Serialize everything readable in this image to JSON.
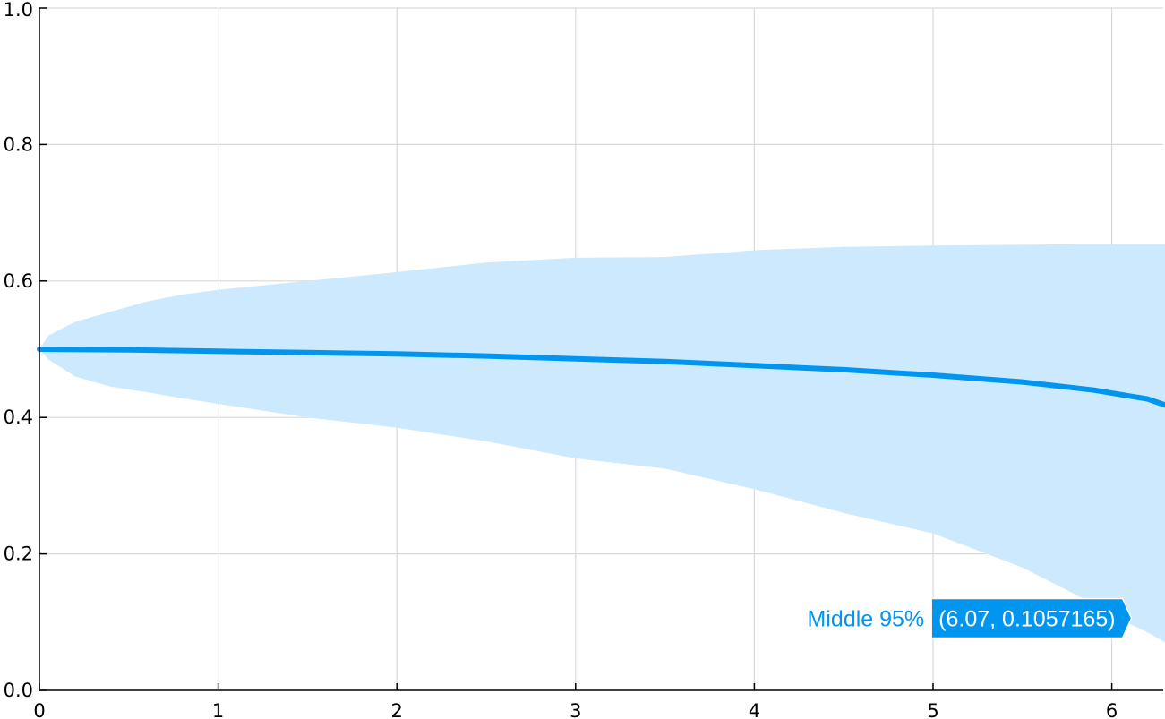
{
  "chart_data": {
    "type": "area",
    "title": "",
    "xlabel": "",
    "ylabel": "",
    "xlim": [
      0,
      6.3
    ],
    "ylim": [
      0,
      1
    ],
    "x_ticks": [
      "0",
      "1",
      "2",
      "3",
      "4",
      "5",
      "6"
    ],
    "y_ticks": [
      "0.0",
      "0.2",
      "0.4",
      "0.6",
      "0.8",
      "1.0"
    ],
    "grid": true,
    "colors": {
      "line": "#0096f0",
      "band": "#cce9fd",
      "tooltip_bg": "#0096f0"
    },
    "series": [
      {
        "name": "Middle 95%",
        "type": "band",
        "x": [
          0,
          0.05,
          0.2,
          0.4,
          0.6,
          0.8,
          1.0,
          1.5,
          2.0,
          2.5,
          3.0,
          3.5,
          4.0,
          4.5,
          5.0,
          5.5,
          5.8,
          6.0,
          6.2,
          6.3
        ],
        "upper": [
          0.5,
          0.52,
          0.54,
          0.555,
          0.57,
          0.58,
          0.587,
          0.6,
          0.613,
          0.627,
          0.634,
          0.635,
          0.645,
          0.65,
          0.652,
          0.653,
          0.654,
          0.654,
          0.654,
          0.654
        ],
        "lower": [
          0.5,
          0.485,
          0.46,
          0.445,
          0.437,
          0.428,
          0.42,
          0.4,
          0.385,
          0.365,
          0.34,
          0.325,
          0.295,
          0.26,
          0.23,
          0.18,
          0.14,
          0.11,
          0.085,
          0.07
        ]
      },
      {
        "name": "",
        "type": "line",
        "x": [
          0,
          0.5,
          1.0,
          1.5,
          2.0,
          2.5,
          3.0,
          3.5,
          4.0,
          4.5,
          5.0,
          5.5,
          5.9,
          6.2,
          6.3
        ],
        "y": [
          0.5,
          0.499,
          0.497,
          0.495,
          0.493,
          0.49,
          0.486,
          0.482,
          0.476,
          0.47,
          0.462,
          0.452,
          0.44,
          0.427,
          0.418
        ]
      }
    ],
    "tooltip": {
      "series_name": "Middle 95%",
      "x": 6.07,
      "y": 0.1057165,
      "text": "(6.07, 0.1057165)"
    }
  }
}
